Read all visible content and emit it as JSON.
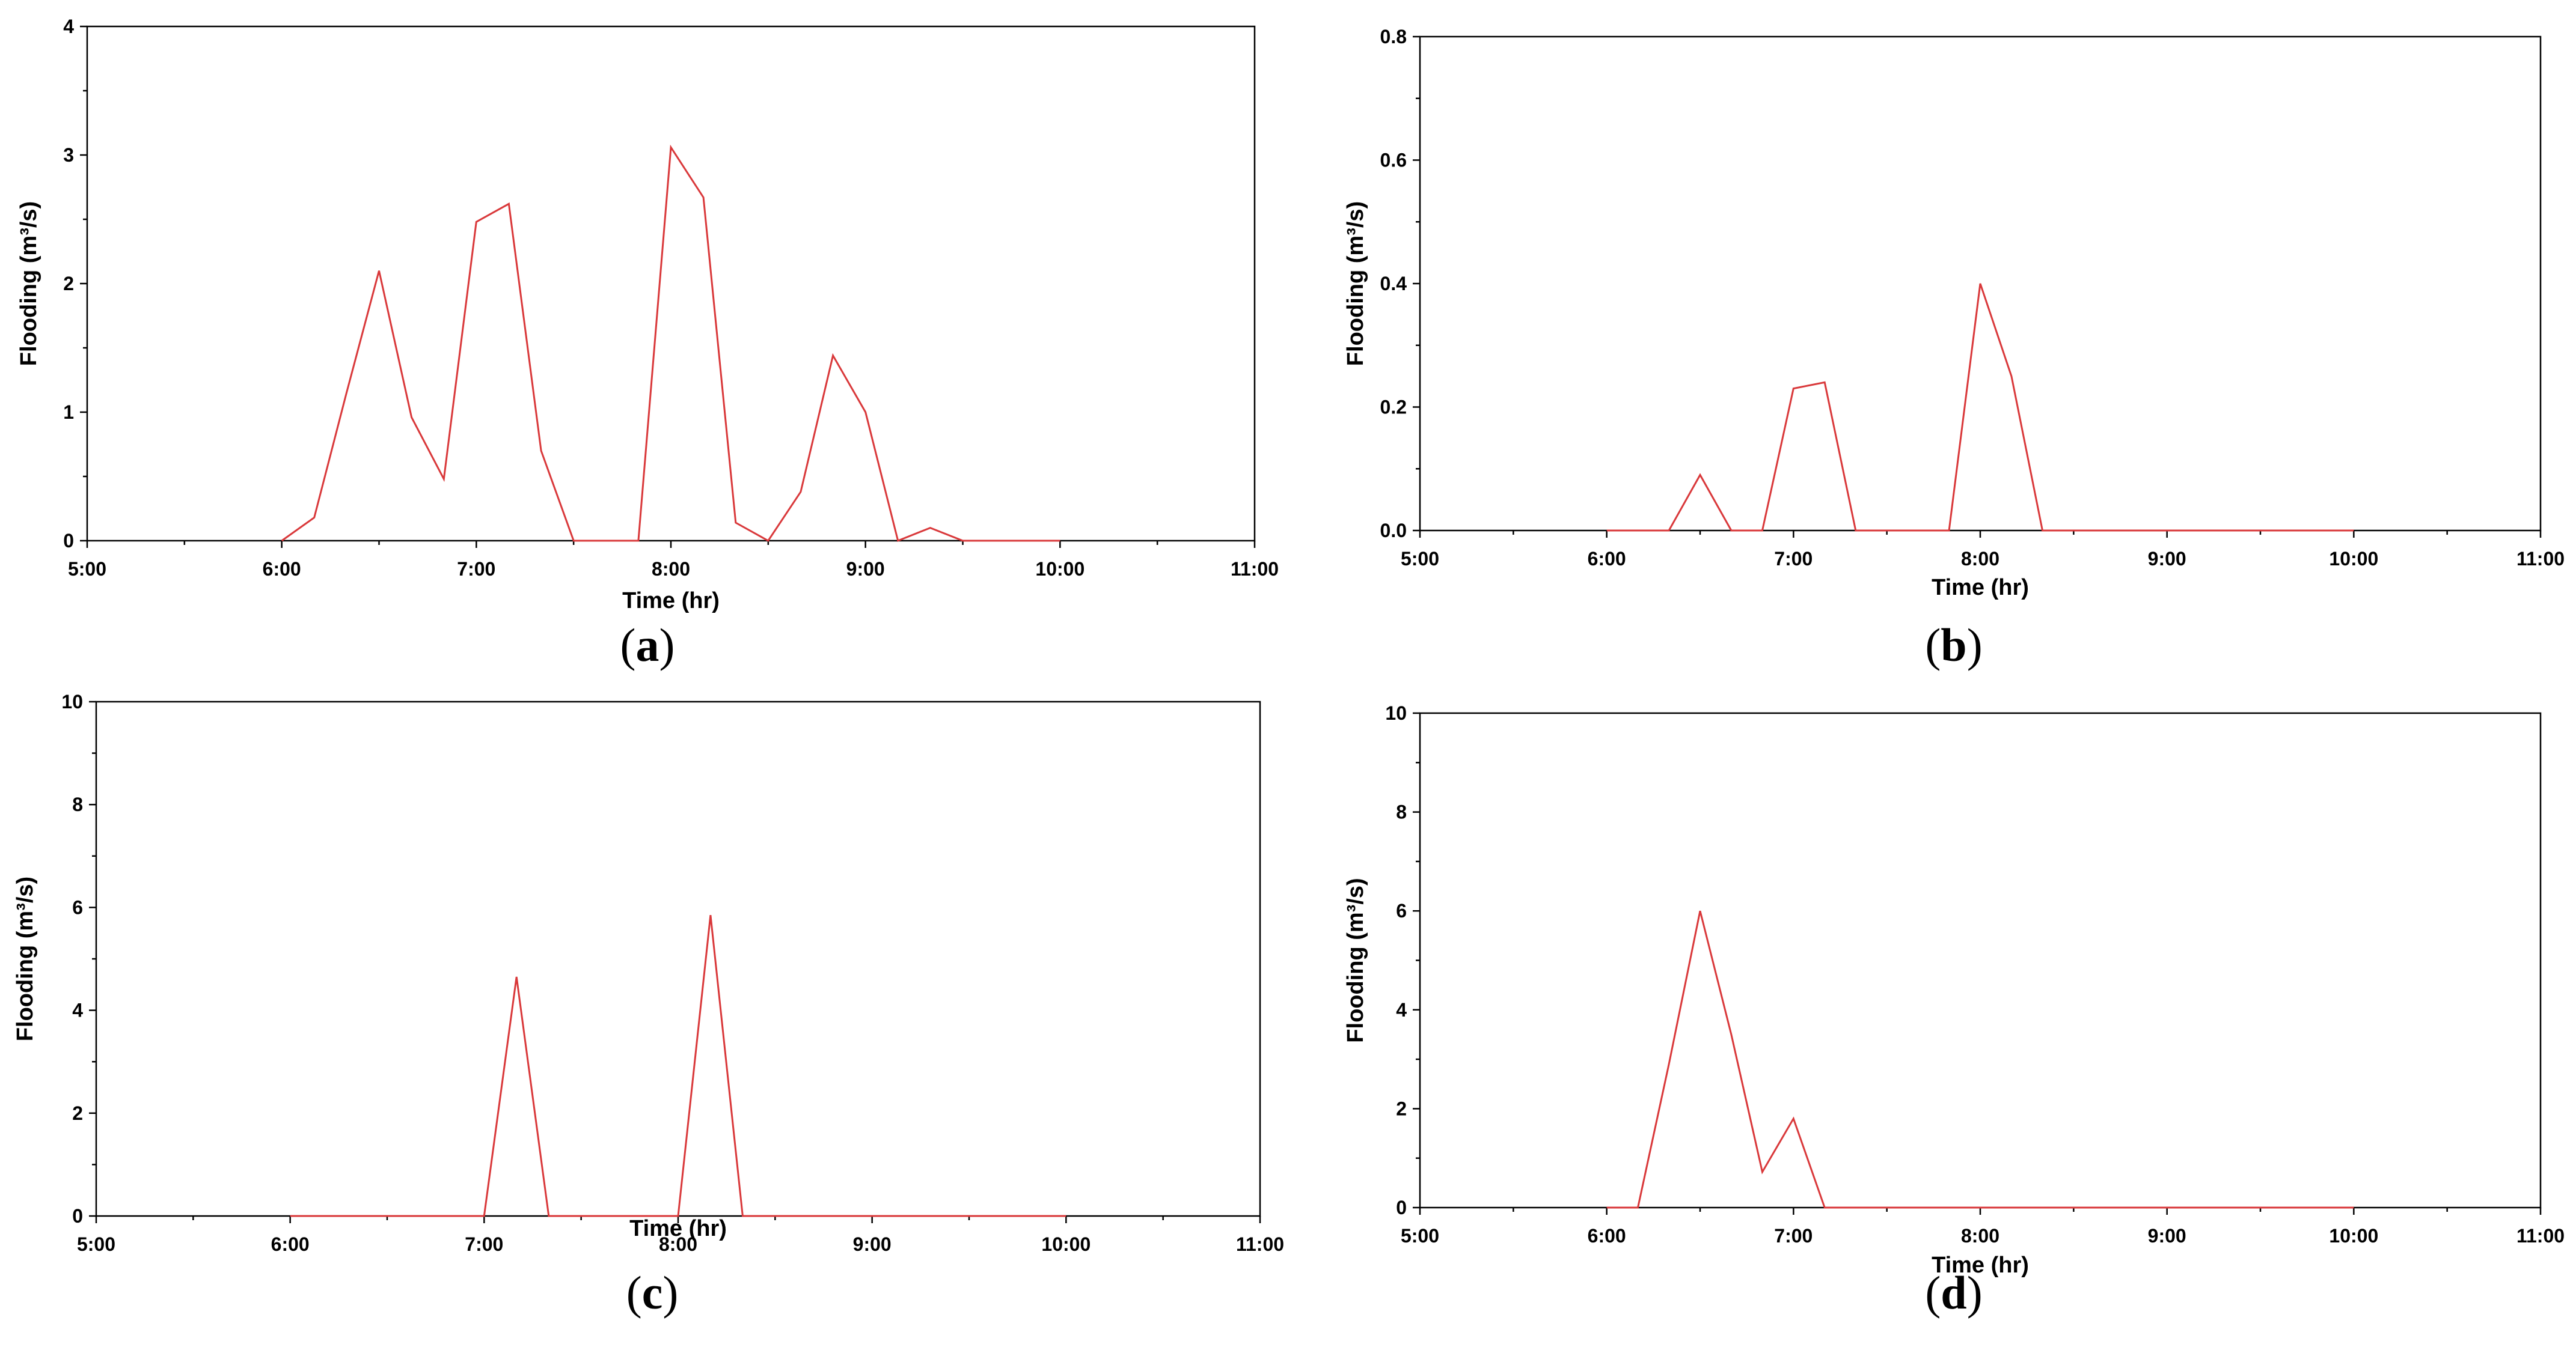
{
  "colors": {
    "series": "#d9383a",
    "axis": "#000000",
    "background": "#ffffff"
  },
  "chart_data": [
    {
      "type": "line",
      "panel_label": "a",
      "xlabel": "Time (hr)",
      "ylabel": "Flooding (m³/s)",
      "xlim": [
        5,
        11
      ],
      "ylim": [
        0,
        4
      ],
      "xticks": [
        "5:00",
        "6:00",
        "7:00",
        "8:00",
        "9:00",
        "10:00",
        "11:00"
      ],
      "yticks": [
        "0",
        "1",
        "2",
        "3",
        "4"
      ],
      "grid": false,
      "series": [
        {
          "x": [
            6.0,
            6.167,
            6.333,
            6.5,
            6.667,
            6.833,
            7.0,
            7.167,
            7.333,
            7.5,
            7.667,
            7.833,
            8.0,
            8.167,
            8.333,
            8.5,
            8.667,
            8.833,
            9.0,
            9.167,
            9.333,
            9.5,
            9.667,
            9.833,
            10.0
          ],
          "y": [
            0.0,
            0.18,
            1.15,
            2.1,
            0.96,
            0.48,
            2.48,
            2.62,
            0.7,
            0.0,
            0.0,
            0.0,
            3.06,
            2.67,
            0.14,
            0.0,
            0.38,
            1.44,
            1.0,
            0.0,
            0.1,
            0.0,
            0.0,
            0.0,
            0.0
          ]
        }
      ]
    },
    {
      "type": "line",
      "panel_label": "b",
      "xlabel": "Time (hr)",
      "ylabel": "Flooding (m³/s)",
      "xlim": [
        5,
        11
      ],
      "ylim": [
        0,
        0.8
      ],
      "xticks": [
        "5:00",
        "6:00",
        "7:00",
        "8:00",
        "9:00",
        "10:00",
        "11:00"
      ],
      "yticks": [
        "0.0",
        "0.2",
        "0.4",
        "0.6",
        "0.8"
      ],
      "grid": false,
      "series": [
        {
          "x": [
            6.0,
            6.167,
            6.333,
            6.5,
            6.667,
            6.833,
            7.0,
            7.167,
            7.333,
            7.5,
            7.667,
            7.833,
            8.0,
            8.167,
            8.333,
            8.5,
            9.0,
            9.5,
            10.0
          ],
          "y": [
            0.0,
            0.0,
            0.0,
            0.09,
            0.0,
            0.0,
            0.23,
            0.24,
            0.0,
            0.0,
            0.0,
            0.0,
            0.4,
            0.25,
            0.0,
            0.0,
            0.0,
            0.0,
            0.0
          ]
        }
      ]
    },
    {
      "type": "line",
      "panel_label": "c",
      "xlabel": "Time (hr)",
      "ylabel": "Flooding (m³/s)",
      "xlim": [
        5,
        11
      ],
      "ylim": [
        0,
        10
      ],
      "xticks": [
        "5:00",
        "6:00",
        "7:00",
        "8:00",
        "9:00",
        "10:00",
        "11:00"
      ],
      "yticks": [
        "0",
        "2",
        "4",
        "6",
        "8",
        "10"
      ],
      "grid": false,
      "series": [
        {
          "x": [
            6.0,
            6.5,
            7.0,
            7.167,
            7.333,
            7.5,
            8.0,
            8.167,
            8.333,
            8.5,
            9.0,
            9.5,
            10.0
          ],
          "y": [
            0.0,
            0.0,
            0.0,
            4.65,
            0.0,
            0.0,
            0.0,
            5.85,
            0.0,
            0.0,
            0.0,
            0.0,
            0.0
          ]
        }
      ]
    },
    {
      "type": "line",
      "panel_label": "d",
      "xlabel": "Time (hr)",
      "ylabel": "Flooding (m³/s)",
      "xlim": [
        5,
        11
      ],
      "ylim": [
        0,
        10
      ],
      "xticks": [
        "5:00",
        "6:00",
        "7:00",
        "8:00",
        "9:00",
        "10:00",
        "11:00"
      ],
      "yticks": [
        "0",
        "2",
        "4",
        "6",
        "8",
        "10"
      ],
      "grid": false,
      "series": [
        {
          "x": [
            6.0,
            6.167,
            6.333,
            6.5,
            6.667,
            6.833,
            7.0,
            7.167,
            7.5,
            8.0,
            8.5,
            9.0,
            9.5,
            10.0
          ],
          "y": [
            0.0,
            0.0,
            2.9,
            6.0,
            3.5,
            0.72,
            1.8,
            0.0,
            0.0,
            0.0,
            0.0,
            0.0,
            0.0,
            0.0
          ]
        }
      ]
    }
  ]
}
